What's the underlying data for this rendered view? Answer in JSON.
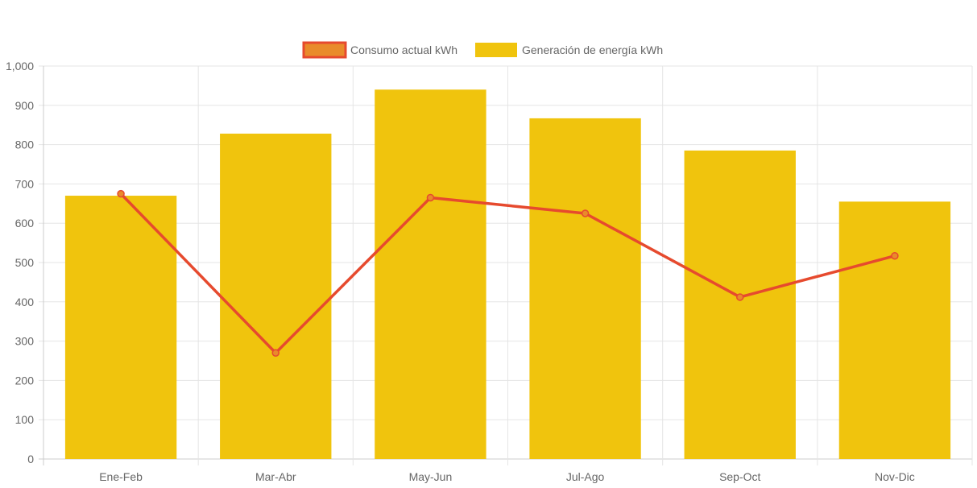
{
  "colors": {
    "bar_fill": "#f0c40d",
    "line_stroke": "#e64a2e",
    "point_fill": "#e98b2a",
    "grid": "#e5e5e5",
    "axis": "#cccccc",
    "text": "#666666"
  },
  "legend": {
    "placement": "top-center",
    "items": [
      {
        "label": "Consumo actual kWh",
        "icon": "line-swatch-icon"
      },
      {
        "label": "Generación de energía kWh",
        "icon": "bar-swatch-icon"
      }
    ]
  },
  "chart_data": {
    "type": "bar",
    "categories": [
      "Ene-Feb",
      "Mar-Abr",
      "May-Jun",
      "Jul-Ago",
      "Sep-Oct",
      "Nov-Dic"
    ],
    "series": [
      {
        "name": "Generación de energía kWh",
        "type": "bar",
        "values": [
          670,
          828,
          940,
          867,
          785,
          655
        ]
      },
      {
        "name": "Consumo actual kWh",
        "type": "line",
        "values": [
          675,
          270,
          665,
          625,
          412,
          517
        ]
      }
    ],
    "ylim": [
      0,
      1000
    ],
    "yticks": [
      "0",
      "100",
      "200",
      "300",
      "400",
      "500",
      "600",
      "700",
      "800",
      "900",
      "1,000"
    ],
    "grid": true
  }
}
